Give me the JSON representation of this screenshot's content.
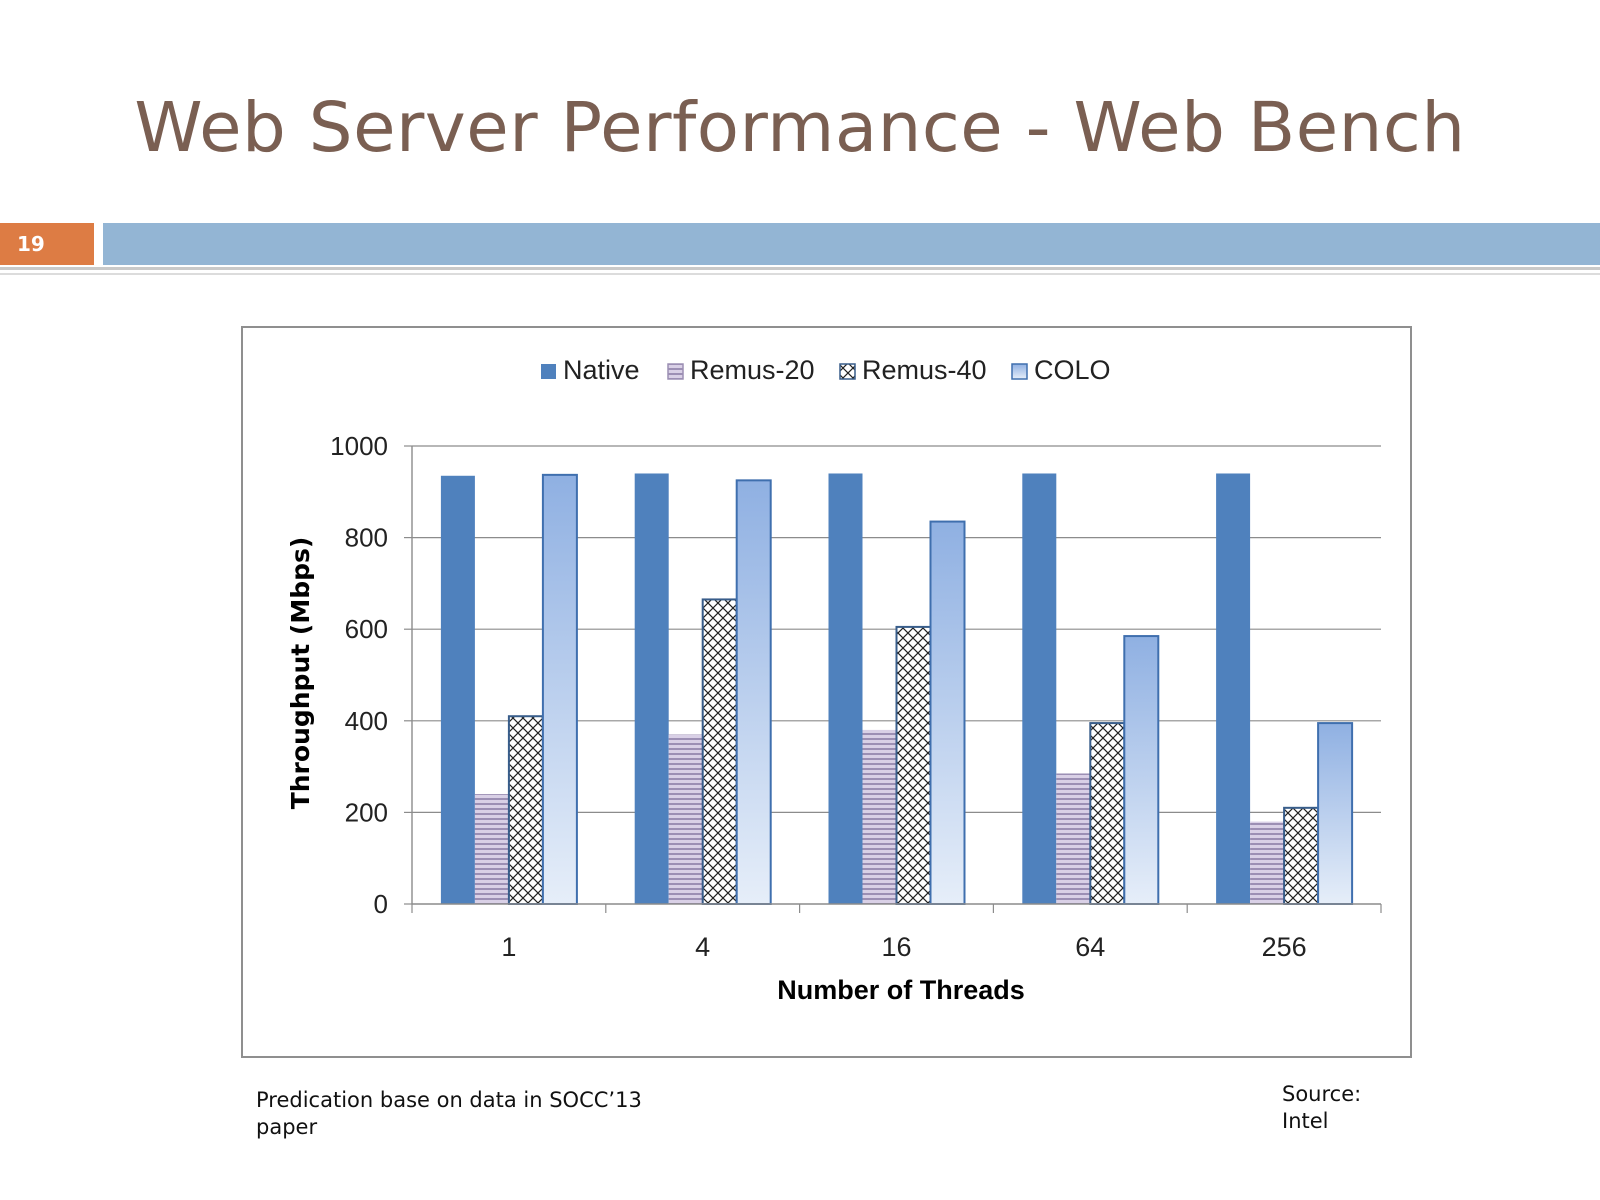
{
  "slide": {
    "title": "Web Server Performance - Web Bench",
    "number": "19",
    "footnote_left": "Predication base on data in SOCC’13 paper",
    "footnote_right": "Source: Intel"
  },
  "chart_data": {
    "type": "bar",
    "title": "",
    "xlabel": "Number of Threads",
    "ylabel": "Throughput (Mbps)",
    "ylim": [
      0,
      1000
    ],
    "yticks": [
      0,
      200,
      400,
      600,
      800,
      1000
    ],
    "grid": true,
    "legend_position": "top",
    "categories": [
      "1",
      "4",
      "16",
      "64",
      "256"
    ],
    "series": [
      {
        "name": "Native",
        "values": [
          935,
          940,
          940,
          940,
          940
        ],
        "color": "#4f81bd"
      },
      {
        "name": "Remus-20",
        "values": [
          240,
          370,
          380,
          285,
          180
        ],
        "color": "#b3a6c6"
      },
      {
        "name": "Remus-40",
        "values": [
          410,
          665,
          605,
          395,
          210
        ],
        "color": "#222222"
      },
      {
        "name": "COLO",
        "values": [
          937,
          925,
          835,
          585,
          395
        ],
        "color": "#95b3e0"
      }
    ]
  }
}
